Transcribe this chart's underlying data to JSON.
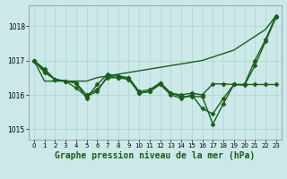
{
  "xlabel": "Graphe pression niveau de la mer (hPa)",
  "bg_color": "#cce8e8",
  "grid_color": "#aad4d4",
  "line_color": "#1a5e1a",
  "xlim": [
    -0.5,
    23.5
  ],
  "ylim": [
    1014.7,
    1018.6
  ],
  "yticks": [
    1015,
    1016,
    1017,
    1018
  ],
  "xticks": [
    0,
    1,
    2,
    3,
    4,
    5,
    6,
    7,
    8,
    9,
    10,
    11,
    12,
    13,
    14,
    15,
    16,
    17,
    18,
    19,
    20,
    21,
    22,
    23
  ],
  "series": [
    {
      "y": [
        1017.0,
        1016.75,
        1016.45,
        1016.4,
        1016.35,
        1015.9,
        1016.3,
        1016.6,
        1016.55,
        1016.5,
        1016.05,
        1016.1,
        1016.35,
        1016.05,
        1015.95,
        1015.95,
        1015.95,
        1015.15,
        1015.75,
        1016.3,
        1016.3,
        1017.0,
        1017.6,
        1018.3
      ],
      "marker": "D",
      "markersize": 2.5,
      "linewidth": 1.0
    },
    {
      "y": [
        1017.0,
        1016.7,
        1016.45,
        1016.4,
        1016.2,
        1015.95,
        1016.1,
        1016.55,
        1016.5,
        1016.45,
        1016.05,
        1016.1,
        1016.3,
        1016.0,
        1015.9,
        1016.0,
        1015.6,
        1015.45,
        1015.9,
        1016.3,
        1016.28,
        1016.85,
        1017.55,
        1018.25
      ],
      "marker": "D",
      "markersize": 2.5,
      "linewidth": 1.0
    },
    {
      "y": [
        1017.0,
        1016.65,
        1016.45,
        1016.4,
        1016.35,
        1016.0,
        1016.15,
        1016.5,
        1016.5,
        1016.5,
        1016.1,
        1016.15,
        1016.35,
        1016.05,
        1016.0,
        1016.05,
        1016.0,
        1016.32,
        1016.32,
        1016.3,
        1016.3,
        1016.3,
        1016.3,
        1016.3
      ],
      "marker": "D",
      "markersize": 2.5,
      "linewidth": 1.0
    },
    {
      "y": [
        1017.0,
        1016.4,
        1016.4,
        1016.4,
        1016.4,
        1016.4,
        1016.5,
        1016.55,
        1016.6,
        1016.65,
        1016.7,
        1016.75,
        1016.8,
        1016.85,
        1016.9,
        1016.95,
        1017.0,
        1017.1,
        1017.2,
        1017.3,
        1017.5,
        1017.7,
        1017.9,
        1018.3
      ],
      "marker": null,
      "markersize": 0,
      "linewidth": 1.0
    }
  ],
  "xlabel_fontsize": 7,
  "tick_fontsize": 5,
  "ytick_fontsize": 5.5
}
